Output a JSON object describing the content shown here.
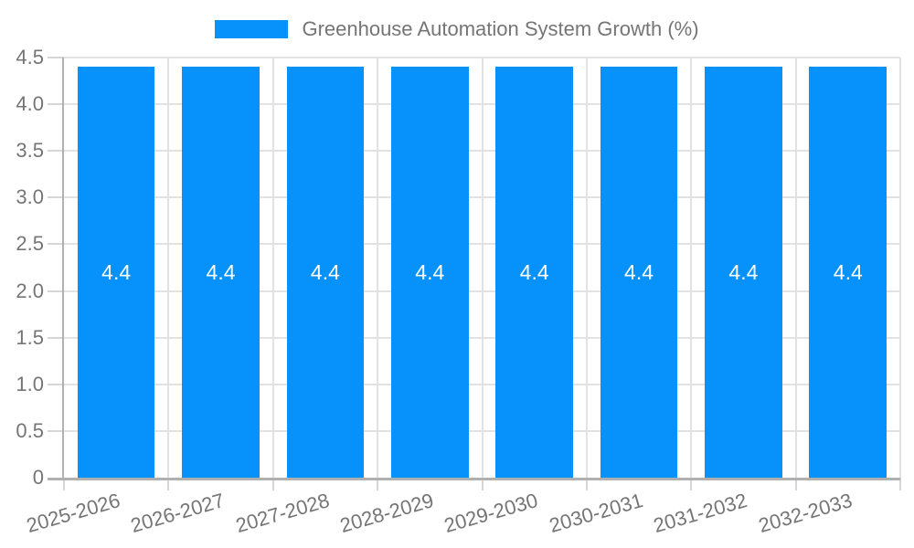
{
  "legend": {
    "label": "Greenhouse Automation System Growth (%)"
  },
  "chart_data": {
    "type": "bar",
    "title": "Greenhouse Automation System Growth (%)",
    "legend_entries": [
      "Greenhouse Automation System Growth (%)"
    ],
    "legend_position": "top-center",
    "categories": [
      "2025-2026",
      "2026-2027",
      "2027-2028",
      "2028-2029",
      "2029-2030",
      "2030-2031",
      "2031-2032",
      "2032-2033"
    ],
    "values": [
      4.4,
      4.4,
      4.4,
      4.4,
      4.4,
      4.4,
      4.4,
      4.4
    ],
    "bar_labels": [
      "4.4",
      "4.4",
      "4.4",
      "4.4",
      "4.4",
      "4.4",
      "4.4",
      "4.4"
    ],
    "xlabel": "",
    "ylabel": "",
    "ylim": [
      0,
      4.5
    ],
    "yticks": [
      0,
      0.5,
      1,
      1.5,
      2,
      2.5,
      3,
      3.5,
      4,
      4.5
    ],
    "ytick_labels": [
      "0",
      "0.5",
      "1.0",
      "1.5",
      "2.0",
      "2.5",
      "3.0",
      "3.5",
      "4.0",
      "4.5"
    ],
    "grid": true,
    "x_label_rotation_deg": -16,
    "colors": {
      "bar": "#0691FB",
      "grid": "#E2E2E2",
      "axis": "#B0B0B0",
      "tick": "#D6D6D6",
      "text": "#757575",
      "bar_label": "#FFFFFF",
      "background": "#FFFFFF"
    }
  }
}
